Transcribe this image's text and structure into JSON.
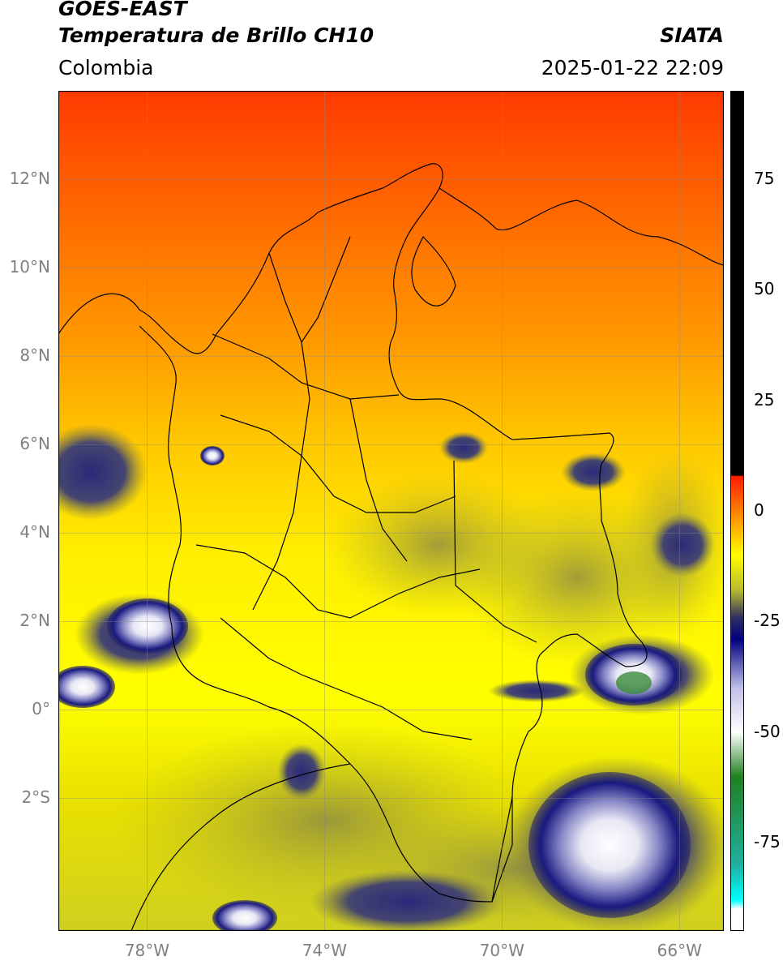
{
  "header": {
    "satellite": "GOES-EAST",
    "product": "Temperatura de Brillo CH10",
    "agency": "SIATA",
    "region": "Colombia",
    "timestamp": "2025-01-22 22:09"
  },
  "map": {
    "lon_range": [
      -80,
      -65
    ],
    "lat_range": [
      -5,
      14
    ],
    "lat_ticks": [
      {
        "value": 12,
        "label": "12°N"
      },
      {
        "value": 10,
        "label": "10°N"
      },
      {
        "value": 8,
        "label": "8°N"
      },
      {
        "value": 6,
        "label": "6°N"
      },
      {
        "value": 4,
        "label": "4°N"
      },
      {
        "value": 2,
        "label": "2°N"
      },
      {
        "value": 0,
        "label": "0°"
      },
      {
        "value": -2,
        "label": "2°S"
      }
    ],
    "lon_ticks": [
      {
        "value": -78,
        "label": "78°W"
      },
      {
        "value": -74,
        "label": "74°W"
      },
      {
        "value": -70,
        "label": "70°W"
      },
      {
        "value": -66,
        "label": "66°W"
      }
    ],
    "gridlines": true
  },
  "colorbar": {
    "range": [
      -95,
      95
    ],
    "ticks": [
      {
        "value": 75,
        "label": "75"
      },
      {
        "value": 50,
        "label": "50"
      },
      {
        "value": 25,
        "label": "25"
      },
      {
        "value": 0,
        "label": "0"
      },
      {
        "value": -25,
        "label": "-25"
      },
      {
        "value": -50,
        "label": "-50"
      },
      {
        "value": -75,
        "label": "-75"
      }
    ],
    "stops": [
      {
        "value": 95,
        "color": "#000000"
      },
      {
        "value": 8,
        "color": "#000000"
      },
      {
        "value": 7.9,
        "color": "#ff1a00"
      },
      {
        "value": 0,
        "color": "#ff8000"
      },
      {
        "value": -10,
        "color": "#ffff00"
      },
      {
        "value": -18,
        "color": "#b8b830"
      },
      {
        "value": -24,
        "color": "#303060"
      },
      {
        "value": -29,
        "color": "#000080"
      },
      {
        "value": -40,
        "color": "#c0c0e8"
      },
      {
        "value": -50,
        "color": "#ffffff"
      },
      {
        "value": -60,
        "color": "#208020"
      },
      {
        "value": -80,
        "color": "#20b0a0"
      },
      {
        "value": -88,
        "color": "#00ffff"
      },
      {
        "value": -90,
        "color": "#ffffff"
      },
      {
        "value": -95,
        "color": "#ffffff"
      }
    ]
  }
}
